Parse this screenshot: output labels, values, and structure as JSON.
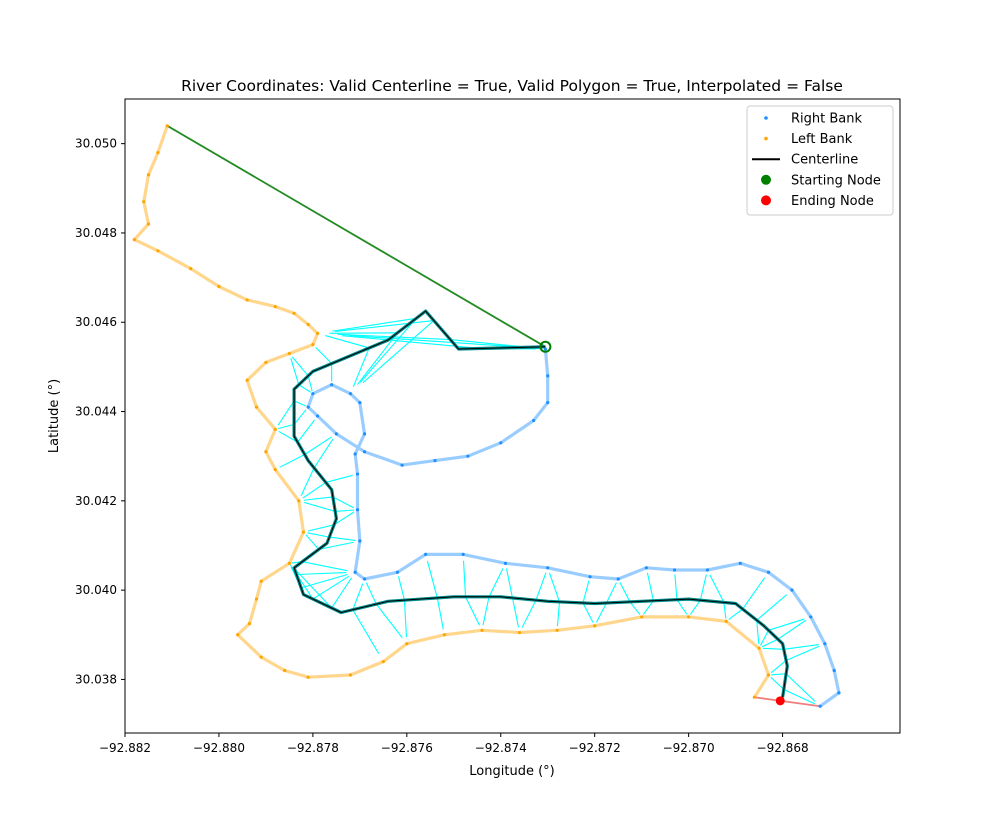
{
  "chart_data": {
    "type": "scatter",
    "title": "River Coordinates: Valid Centerline = True, Valid Polygon = True, Interpolated = False",
    "xlabel": "Longitude (°)",
    "ylabel": "Latitude (°)",
    "xlim": [
      -92.882,
      -92.8655
    ],
    "ylim": [
      30.0368,
      30.051
    ],
    "xticks": [
      -92.882,
      -92.88,
      -92.878,
      -92.876,
      -92.874,
      -92.872,
      -92.87,
      -92.868
    ],
    "xtick_labels": [
      "−92.882",
      "−92.880",
      "−92.878",
      "−92.876",
      "−92.874",
      "−92.872",
      "−92.870",
      "−92.868"
    ],
    "yticks": [
      30.038,
      30.04,
      30.042,
      30.044,
      30.046,
      30.048,
      30.05
    ],
    "ytick_labels": [
      "30.038",
      "30.040",
      "30.042",
      "30.044",
      "30.046",
      "30.048",
      "30.050"
    ],
    "grid": false,
    "legend_position": "top-right",
    "legend": [
      {
        "label": "Right Bank",
        "marker": "small-dot",
        "color": "#1e90ff"
      },
      {
        "label": "Left Bank",
        "marker": "small-dot",
        "color": "#ffa500"
      },
      {
        "label": "Centerline",
        "marker": "line",
        "color": "#000000"
      },
      {
        "label": "Starting Node",
        "marker": "dot",
        "color": "#008000"
      },
      {
        "label": "Ending Node",
        "marker": "dot",
        "color": "#ff0000"
      }
    ],
    "series": [
      {
        "name": "Right Bank",
        "color": "#1e90ff",
        "points": [
          [
            -92.87305,
            30.0454
          ],
          [
            -92.873,
            30.0448
          ],
          [
            -92.873,
            30.0442
          ],
          [
            -92.8733,
            30.0438
          ],
          [
            -92.874,
            30.0433
          ],
          [
            -92.8747,
            30.043
          ],
          [
            -92.8754,
            30.0429
          ],
          [
            -92.8761,
            30.0428
          ],
          [
            -92.8769,
            30.0431
          ],
          [
            -92.8775,
            30.0435
          ],
          [
            -92.8779,
            30.0439
          ],
          [
            -92.8781,
            30.0441
          ],
          [
            -92.878,
            30.0444
          ],
          [
            -92.8776,
            30.0446
          ],
          [
            -92.8772,
            30.0444
          ],
          [
            -92.877,
            30.0442
          ],
          [
            -92.8769,
            30.0435
          ],
          [
            -92.8771,
            30.04305
          ],
          [
            -92.87705,
            30.0426
          ],
          [
            -92.87705,
            30.0418
          ],
          [
            -92.877,
            30.0411
          ],
          [
            -92.8771,
            30.0404
          ],
          [
            -92.8769,
            30.04025
          ],
          [
            -92.8762,
            30.0404
          ],
          [
            -92.8756,
            30.0408
          ],
          [
            -92.8748,
            30.0408
          ],
          [
            -92.8739,
            30.0406
          ],
          [
            -92.873,
            30.0405
          ],
          [
            -92.8721,
            30.0403
          ],
          [
            -92.8715,
            30.04025
          ],
          [
            -92.8709,
            30.0405
          ],
          [
            -92.8703,
            30.04045
          ],
          [
            -92.8696,
            30.04045
          ],
          [
            -92.8689,
            30.0406
          ],
          [
            -92.8683,
            30.0404
          ],
          [
            -92.8678,
            30.04
          ],
          [
            -92.8674,
            30.0394
          ],
          [
            -92.8671,
            30.0388
          ],
          [
            -92.8669,
            30.0382
          ],
          [
            -92.8668,
            30.0377
          ],
          [
            -92.8672,
            30.0374
          ]
        ]
      },
      {
        "name": "Left Bank",
        "color": "#ffa500",
        "points": [
          [
            -92.8811,
            30.0504
          ],
          [
            -92.8813,
            30.0498
          ],
          [
            -92.8815,
            30.0493
          ],
          [
            -92.8816,
            30.0487
          ],
          [
            -92.8815,
            30.0482
          ],
          [
            -92.8818,
            30.04785
          ],
          [
            -92.8813,
            30.0476
          ],
          [
            -92.8806,
            30.0472
          ],
          [
            -92.88,
            30.0468
          ],
          [
            -92.8794,
            30.0465
          ],
          [
            -92.8788,
            30.04635
          ],
          [
            -92.8784,
            30.0462
          ],
          [
            -92.8781,
            30.04595
          ],
          [
            -92.8779,
            30.04575
          ],
          [
            -92.878,
            30.0455
          ],
          [
            -92.8785,
            30.0453
          ],
          [
            -92.879,
            30.0451
          ],
          [
            -92.8794,
            30.0447
          ],
          [
            -92.8792,
            30.0441
          ],
          [
            -92.8788,
            30.0436
          ],
          [
            -92.879,
            30.0431
          ],
          [
            -92.8788,
            30.0427
          ],
          [
            -92.8783,
            30.042
          ],
          [
            -92.8782,
            30.0413
          ],
          [
            -92.8785,
            30.0406
          ],
          [
            -92.8791,
            30.0402
          ],
          [
            -92.8792,
            30.0398
          ],
          [
            -92.87935,
            30.03925
          ],
          [
            -92.8796,
            30.039
          ],
          [
            -92.8791,
            30.0385
          ],
          [
            -92.8786,
            30.0382
          ],
          [
            -92.8781,
            30.03805
          ],
          [
            -92.8772,
            30.0381
          ],
          [
            -92.8765,
            30.0384
          ],
          [
            -92.876,
            30.0388
          ],
          [
            -92.8752,
            30.039
          ],
          [
            -92.8744,
            30.0391
          ],
          [
            -92.8736,
            30.03905
          ],
          [
            -92.8728,
            30.0391
          ],
          [
            -92.872,
            30.0392
          ],
          [
            -92.871,
            30.0394
          ],
          [
            -92.87,
            30.0394
          ],
          [
            -92.8692,
            30.0393
          ],
          [
            -92.8685,
            30.0387
          ],
          [
            -92.8683,
            30.0381
          ],
          [
            -92.8686,
            30.0376
          ]
        ]
      },
      {
        "name": "Centerline",
        "color": "#000000",
        "points": [
          [
            -92.87305,
            30.04545
          ],
          [
            -92.8749,
            30.0454
          ],
          [
            -92.8756,
            30.04625
          ],
          [
            -92.8764,
            30.0456
          ],
          [
            -92.878,
            30.0449
          ],
          [
            -92.8784,
            30.0445
          ],
          [
            -92.8784,
            30.04345
          ],
          [
            -92.8781,
            30.0429
          ],
          [
            -92.8776,
            30.04225
          ],
          [
            -92.8775,
            30.0416
          ],
          [
            -92.8777,
            30.04105
          ],
          [
            -92.8784,
            30.0405
          ],
          [
            -92.8782,
            30.0399
          ],
          [
            -92.8774,
            30.0395
          ],
          [
            -92.8764,
            30.03975
          ],
          [
            -92.875,
            30.03985
          ],
          [
            -92.874,
            30.03985
          ],
          [
            -92.873,
            30.03975
          ],
          [
            -92.872,
            30.0397
          ],
          [
            -92.871,
            30.03975
          ],
          [
            -92.87,
            30.0398
          ],
          [
            -92.869,
            30.0397
          ],
          [
            -92.8684,
            30.0392
          ],
          [
            -92.868,
            30.0388
          ],
          [
            -92.8679,
            30.0383
          ],
          [
            -92.868,
            30.0376
          ]
        ]
      },
      {
        "name": "Starting Node",
        "color": "#008000",
        "points": [
          [
            -92.87305,
            30.04545
          ]
        ]
      },
      {
        "name": "Ending Node",
        "color": "#ff0000",
        "points": [
          [
            -92.86805,
            30.03752
          ]
        ]
      }
    ]
  }
}
